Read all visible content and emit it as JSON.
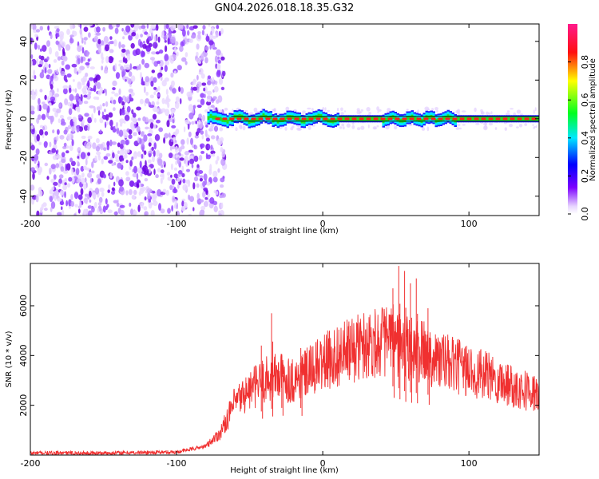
{
  "title": "GN04.2026.018.18.35.G32",
  "chart_data": [
    {
      "type": "heatmap",
      "name": "spectrogram",
      "xlabel": "Height of straight line (km)",
      "ylabel": "Frequency (Hz)",
      "xlim": [
        -200,
        148
      ],
      "ylim": [
        -50,
        49
      ],
      "xticks": [
        -200,
        -100,
        0,
        100
      ],
      "yticks": [
        40,
        20,
        0,
        -20,
        -40
      ],
      "noise_region_km": [
        -200,
        -67
      ],
      "signal_region_km": [
        -79,
        148
      ],
      "signal_center_hz": 0,
      "colorbar": {
        "label": "Normalized spectral amplitude",
        "range": [
          0.0,
          1.0
        ],
        "ticks": [
          0.0,
          0.2,
          0.4,
          0.6,
          0.8
        ],
        "colors": [
          "#f4e8ff",
          "#7c00ff",
          "#0000ff",
          "#00e0ff",
          "#00ff20",
          "#ffff00",
          "#ff0000",
          "#ff1a8c"
        ]
      }
    },
    {
      "type": "line",
      "name": "snr",
      "xlabel": "Height of straight line (km)",
      "ylabel": "SNR (10 * v/v)",
      "xlim": [
        -200,
        148
      ],
      "ylim": [
        0,
        7700
      ],
      "xticks": [
        -200,
        -100,
        0,
        100
      ],
      "yticks": [
        2000,
        4000,
        6000
      ],
      "series_color": "#f03030",
      "envelope": {
        "x": [
          -200,
          -150,
          -100,
          -80,
          -70,
          -60,
          -50,
          -40,
          -30,
          -20,
          -10,
          0,
          10,
          20,
          30,
          40,
          50,
          55,
          60,
          70,
          80,
          90,
          100,
          110,
          120,
          130,
          140,
          148
        ],
        "y": [
          80,
          80,
          120,
          350,
          900,
          2100,
          2600,
          3000,
          3200,
          3000,
          3300,
          3700,
          4000,
          4200,
          4500,
          4600,
          4600,
          4300,
          4200,
          4100,
          3800,
          3600,
          3400,
          3200,
          3000,
          2800,
          2600,
          2400
        ]
      },
      "spikes": [
        {
          "x": -42,
          "y": 4400
        },
        {
          "x": -35,
          "y": 5700
        },
        {
          "x": -28,
          "y": 4000
        },
        {
          "x": -15,
          "y": 4300
        },
        {
          "x": 48,
          "y": 6700
        },
        {
          "x": 52,
          "y": 7600
        },
        {
          "x": 56,
          "y": 7400
        },
        {
          "x": 60,
          "y": 6900
        },
        {
          "x": 64,
          "y": 7100
        },
        {
          "x": 72,
          "y": 5900
        }
      ]
    }
  ]
}
